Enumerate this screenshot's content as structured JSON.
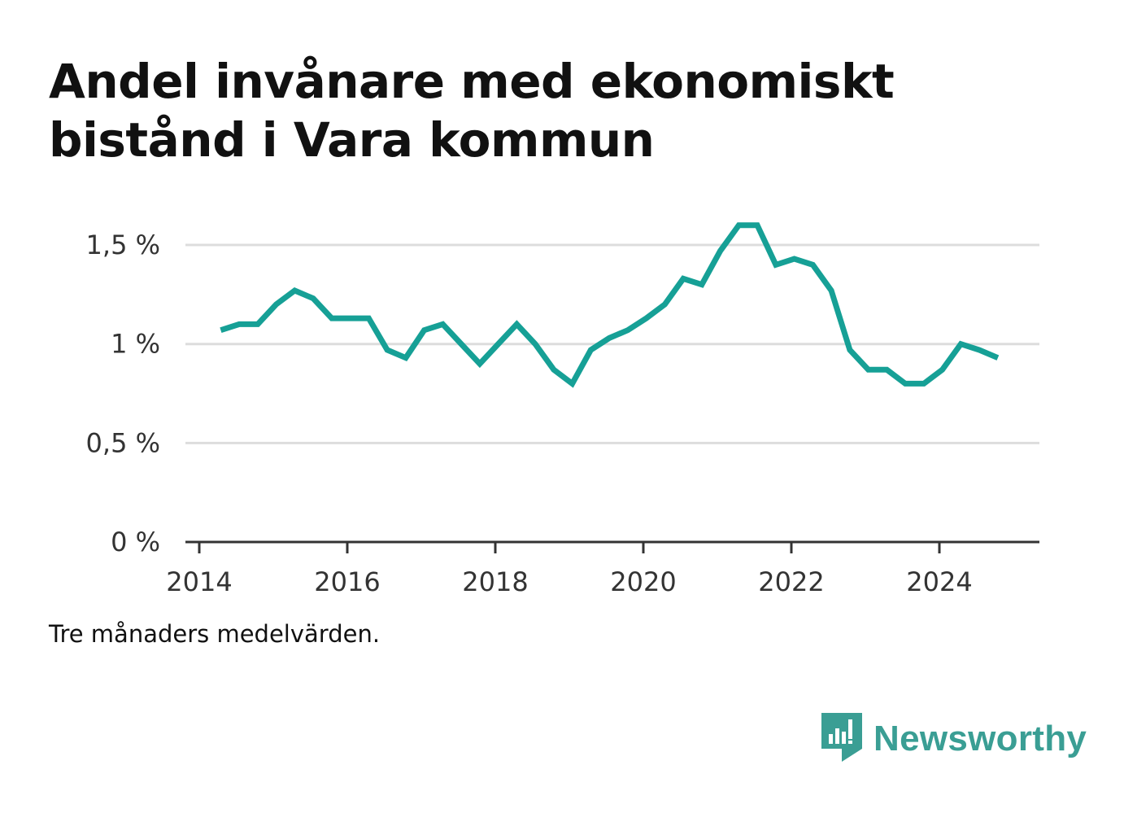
{
  "title_lines": [
    "Andel invånare med ekonomiskt",
    "bistånd i Vara kommun"
  ],
  "note": "Tre månaders medelvärden.",
  "brand": {
    "name": "Newsworthy",
    "icon": "newsworthy-logo-icon",
    "color": "#3a9e94"
  },
  "colors": {
    "line": "#16a096",
    "grid": "#dddddd",
    "axis": "#333333",
    "text": "#111111"
  },
  "chart_data": {
    "type": "line",
    "title": "Andel invånare med ekonomiskt bistånd i Vara kommun",
    "xlabel": "",
    "ylabel": "",
    "xlim": [
      2014,
      2025.35
    ],
    "ylim": [
      0,
      1.5
    ],
    "x_ticks": [
      2014,
      2016,
      2018,
      2020,
      2022,
      2024
    ],
    "x_tick_labels": [
      "2014",
      "2016",
      "2018",
      "2020",
      "2022",
      "2024"
    ],
    "y_ticks": [
      0,
      0.5,
      1,
      1.5
    ],
    "y_tick_labels": [
      "0 %",
      "0,5 %",
      "1 %",
      "1,5 %"
    ],
    "grid": true,
    "series": [
      {
        "x": [
          2014.29,
          2014.54,
          2014.79,
          2015.04,
          2015.29,
          2015.54,
          2015.79,
          2016.04,
          2016.29,
          2016.54,
          2016.79,
          2017.04,
          2017.29,
          2017.54,
          2017.79,
          2018.04,
          2018.29,
          2018.54,
          2018.79,
          2019.04,
          2019.29,
          2019.54,
          2019.79,
          2020.04,
          2020.29,
          2020.54,
          2020.79,
          2021.04,
          2021.29,
          2021.54,
          2021.79,
          2022.04,
          2022.29,
          2022.54,
          2022.79,
          2023.04,
          2023.29,
          2023.54,
          2023.79,
          2024.04,
          2024.29,
          2024.54,
          2024.79
        ],
        "y": [
          1.07,
          1.1,
          1.1,
          1.2,
          1.27,
          1.23,
          1.13,
          1.13,
          1.13,
          0.97,
          0.93,
          1.07,
          1.1,
          1.0,
          0.9,
          1.0,
          1.1,
          1.0,
          0.87,
          0.8,
          0.97,
          1.03,
          1.07,
          1.13,
          1.2,
          1.33,
          1.3,
          1.47,
          1.6,
          1.6,
          1.4,
          1.43,
          1.4,
          1.27,
          0.97,
          0.87,
          0.87,
          0.8,
          0.8,
          0.87,
          1.0,
          0.97,
          0.93
        ]
      }
    ]
  }
}
